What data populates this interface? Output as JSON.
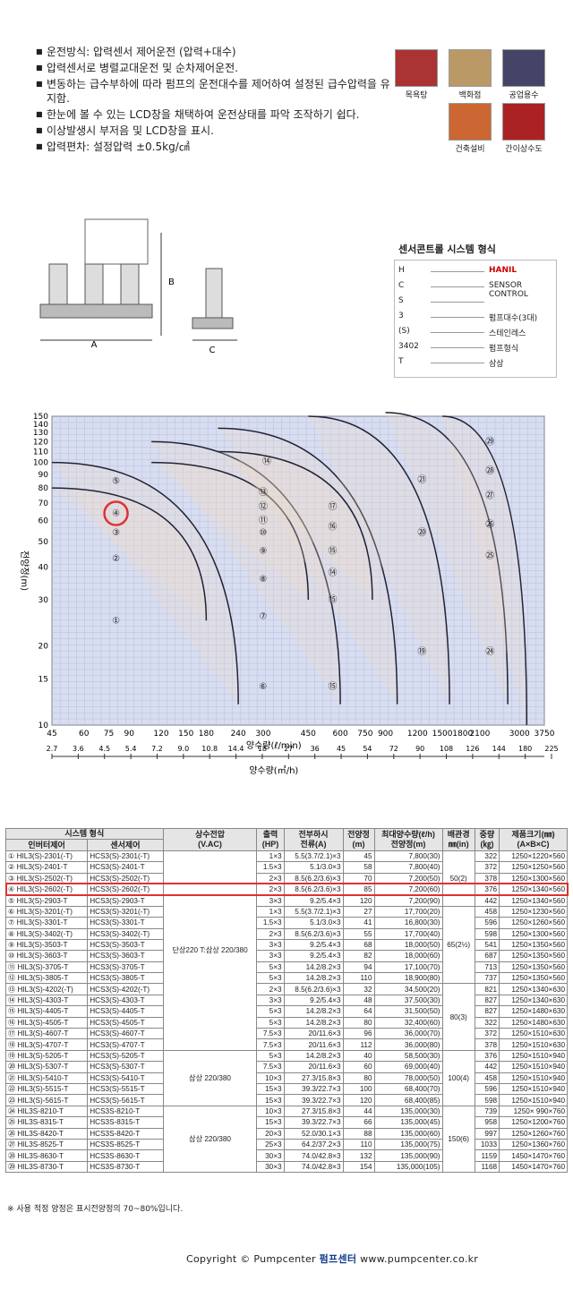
{
  "features": [
    "운전방식: 압력센서 제어운전 (압력+대수)",
    "압력센서로 병렬교대운전 및 순차제어운전.",
    "변동하는 급수부하에 따라 펌프의 운전대수를 제어하여 설정된 급수압력을 유지함.",
    "한눈에 볼 수 있는 LCD창을 채택하여 운전상태를 파악 조작하기 쉽다.",
    "이상발생시 부저음 및 LCD창을 표시.",
    "압력편차: 설정압력 ±0.5kg/㎠"
  ],
  "applications": [
    "목욕탕",
    "백화점",
    "공업용수",
    "건축설비",
    "간이상수도"
  ],
  "drawing_labels": {
    "a": "A",
    "b": "B",
    "c": "C"
  },
  "model_title": "센서콘트롤 시스템 형식",
  "model_code": [
    {
      "code": "H",
      "desc": "HANIL"
    },
    {
      "code": "C",
      "desc": "SENSOR CONTROL"
    },
    {
      "code": "S",
      "desc": ""
    },
    {
      "code": "3",
      "desc": "펌프대수(3대)"
    },
    {
      "code": "(S)",
      "desc": "스테인레스"
    },
    {
      "code": "3402",
      "desc": "펌프형식"
    },
    {
      "code": "T",
      "desc": "삼상"
    }
  ],
  "chart_data": {
    "type": "scatter",
    "xlabel": "양수량(ℓ/min)",
    "x2label": "양수량(㎥/h)",
    "ylabel": "전양정(m)",
    "xscale": "log",
    "yscale": "log",
    "xlim": [
      45,
      3750
    ],
    "ylim": [
      10,
      150
    ],
    "x_ticks": [
      45,
      60,
      75,
      90,
      120,
      150,
      180,
      240,
      300,
      450,
      600,
      750,
      900,
      1200,
      1500,
      1800,
      2100,
      3000,
      3750
    ],
    "x2_ticks": [
      "2.7",
      "3.6",
      "4.5",
      "5.4",
      "7.2",
      "9.0",
      "10.8",
      "14.4",
      "18",
      "27",
      "36",
      "45",
      "54",
      "72",
      "90",
      "108",
      "126",
      "144",
      "180",
      "225"
    ],
    "y_ticks": [
      10,
      15,
      20,
      30,
      40,
      50,
      60,
      70,
      80,
      90,
      100,
      110,
      120,
      130,
      140,
      150
    ],
    "regions": [
      {
        "id": "①",
        "x": 80,
        "y": 25
      },
      {
        "id": "②",
        "x": 80,
        "y": 43
      },
      {
        "id": "③",
        "x": 80,
        "y": 54
      },
      {
        "id": "④",
        "x": 80,
        "y": 64
      },
      {
        "id": "⑤",
        "x": 80,
        "y": 85
      },
      {
        "id": "⑥",
        "x": 300,
        "y": 14
      },
      {
        "id": "⑦",
        "x": 300,
        "y": 26
      },
      {
        "id": "⑧",
        "x": 300,
        "y": 36
      },
      {
        "id": "⑨",
        "x": 300,
        "y": 46
      },
      {
        "id": "⑩",
        "x": 300,
        "y": 54
      },
      {
        "id": "⑪",
        "x": 300,
        "y": 60
      },
      {
        "id": "⑫",
        "x": 300,
        "y": 68
      },
      {
        "id": "⑬",
        "x": 300,
        "y": 77
      },
      {
        "id": "⑭",
        "x": 310,
        "y": 101
      },
      {
        "id": "⑮",
        "x": 560,
        "y": 14
      },
      {
        "id": "⑮",
        "x": 560,
        "y": 30
      },
      {
        "id": "⑭",
        "x": 560,
        "y": 38
      },
      {
        "id": "⑮",
        "x": 560,
        "y": 46
      },
      {
        "id": "⑯",
        "x": 560,
        "y": 57
      },
      {
        "id": "⑰",
        "x": 560,
        "y": 68
      },
      {
        "id": "⑲",
        "x": 1250,
        "y": 19
      },
      {
        "id": "⑳",
        "x": 1250,
        "y": 54
      },
      {
        "id": "㉑",
        "x": 1250,
        "y": 86
      },
      {
        "id": "㉔",
        "x": 2300,
        "y": 19
      },
      {
        "id": "㉕",
        "x": 2300,
        "y": 44
      },
      {
        "id": "㉖",
        "x": 2300,
        "y": 58
      },
      {
        "id": "㉗",
        "x": 2300,
        "y": 75
      },
      {
        "id": "㉘",
        "x": 2300,
        "y": 93
      },
      {
        "id": "㉙",
        "x": 2300,
        "y": 120
      }
    ],
    "highlight": "④"
  },
  "table": {
    "headers": {
      "system": "시스템 형식",
      "inverter": "인버터제어",
      "sensor": "센서제어",
      "power": "상수전압",
      "power_unit": "(V.AC)",
      "output": "출력",
      "output_unit": "(HP)",
      "current": "전부하시",
      "current_unit": "전류(A)",
      "head": "전양정",
      "head_unit": "(m)",
      "flow": "최대양수량(ℓ/h)",
      "flow_unit": "전양정(m)",
      "pipe": "배관경",
      "pipe_unit": "㎜(in)",
      "weight": "중량",
      "weight_unit": "(㎏)",
      "size": "제품크기(㎜)",
      "size_unit": "(A×B×C)"
    },
    "rows": [
      [
        "① HIL3(S)-2301(-T)",
        "HCS3(S)-2301(-T)",
        "1×3",
        "5.5(3.7/2.1)×3",
        "45",
        "7,800(30)",
        "322",
        "1250×1220×560"
      ],
      [
        "② HIL3(S)-2401-T",
        "HCS3(S)-2401-T",
        "1.5×3",
        "5.1/3.0×3",
        "58",
        "7,800(40)",
        "372",
        "1250×1250×560"
      ],
      [
        "③ HIL3(S)-2502(-T)",
        "HCS3(S)-2502(-T)",
        "2×3",
        "8.5(6.2/3.6)×3",
        "70",
        "7,200(50)",
        "378",
        "1250×1300×560"
      ],
      [
        "④ HIL3(S)-2602(-T)",
        "HCS3(S)-2602(-T)",
        "2×3",
        "8.5(6.2/3.6)×3",
        "85",
        "7,200(60)",
        "376",
        "1250×1340×560"
      ],
      [
        "⑤ HIL3(S)-2903-T",
        "HCS3(S)-2903-T",
        "3×3",
        "9.2/5.4×3",
        "120",
        "7,200(90)",
        "442",
        "1250×1340×560"
      ],
      [
        "⑥ HIL3(S)-3201(-T)",
        "HCS3(S)-3201(-T)",
        "1×3",
        "5.5(3.7/2.1)×3",
        "27",
        "17,700(20)",
        "458",
        "1250×1230×560"
      ],
      [
        "⑦ HIL3(S)-3301-T",
        "HCS3(S)-3301-T",
        "1.5×3",
        "5.1/3.0×3",
        "41",
        "16,800(30)",
        "596",
        "1250×1260×560"
      ],
      [
        "⑧ HIL3(S)-3402(-T)",
        "HCS3(S)-3402(-T)",
        "2×3",
        "8.5(6.2/3.6)×3",
        "55",
        "17,700(40)",
        "598",
        "1250×1300×560"
      ],
      [
        "⑨ HIL3(S)-3503-T",
        "HCS3(S)-3503-T",
        "3×3",
        "9.2/5.4×3",
        "68",
        "18,000(50)",
        "541",
        "1250×1350×560"
      ],
      [
        "⑩ HIL3(S)-3603-T",
        "HCS3(S)-3603-T",
        "3×3",
        "9.2/5.4×3",
        "82",
        "18,000(60)",
        "687",
        "1250×1350×560"
      ],
      [
        "⑪ HIL3(S)-3705-T",
        "HCS3(S)-3705-T",
        "5×3",
        "14.2/8.2×3",
        "94",
        "17,100(70)",
        "713",
        "1250×1350×560"
      ],
      [
        "⑫ HIL3(S)-3805-T",
        "HCS3(S)-3805-T",
        "5×3",
        "14.2/8.2×3",
        "110",
        "18,900(80)",
        "737",
        "1250×1350×560"
      ],
      [
        "⑬ HIL3(S)-4202(-T)",
        "HCS3(S)-4202(-T)",
        "2×3",
        "8.5(6.2/3.6)×3",
        "32",
        "34,500(20)",
        "821",
        "1250×1340×630"
      ],
      [
        "⑭ HIL3(S)-4303-T",
        "HCS3(S)-4303-T",
        "3×3",
        "9.2/5.4×3",
        "48",
        "37,500(30)",
        "827",
        "1250×1340×630"
      ],
      [
        "⑮ HIL3(S)-4405-T",
        "HCS3(S)-4405-T",
        "5×3",
        "14.2/8.2×3",
        "64",
        "31,500(50)",
        "827",
        "1250×1480×630"
      ],
      [
        "⑯ HIL3(S)-4505-T",
        "HCS3(S)-4505-T",
        "5×3",
        "14.2/8.2×3",
        "80",
        "32,400(60)",
        "322",
        "1250×1480×630"
      ],
      [
        "⑰ HIL3(S)-4607-T",
        "HCS3(S)-4607-T",
        "7.5×3",
        "20/11.6×3",
        "96",
        "36,000(70)",
        "372",
        "1250×1510×630"
      ],
      [
        "⑱ HIL3(S)-4707-T",
        "HCS3(S)-4707-T",
        "7.5×3",
        "20/11.6×3",
        "112",
        "36,000(80)",
        "378",
        "1250×1510×630"
      ],
      [
        "⑲ HIL3(S)-5205-T",
        "HCS3(S)-5205-T",
        "5×3",
        "14.2/8.2×3",
        "40",
        "58,500(30)",
        "376",
        "1250×1510×940"
      ],
      [
        "⑳ HIL3(S)-5307-T",
        "HCS3(S)-5307-T",
        "7.5×3",
        "20/11.6×3",
        "60",
        "69,000(40)",
        "442",
        "1250×1510×940"
      ],
      [
        "㉑ HIL3(S)-5410-T",
        "HCS3(S)-5410-T",
        "10×3",
        "27.3/15.8×3",
        "80",
        "78,000(50)",
        "458",
        "1250×1510×940"
      ],
      [
        "㉒ HIL3(S)-5515-T",
        "HCS3(S)-5515-T",
        "15×3",
        "39.3/22.7×3",
        "100",
        "68,400(70)",
        "596",
        "1250×1510×940"
      ],
      [
        "㉓ HIL3(S)-5615-T",
        "HCS3(S)-5615-T",
        "15×3",
        "39.3/22.7×3",
        "120",
        "68,400(85)",
        "598",
        "1250×1510×940"
      ],
      [
        "㉔ HIL3S-8210-T",
        "HCS3S-8210-T",
        "10×3",
        "27.3/15.8×3",
        "44",
        "135,000(30)",
        "739",
        "1250× 990×760"
      ],
      [
        "㉕ HIL3S-8315-T",
        "HCS3S-8315-T",
        "15×3",
        "39.3/22.7×3",
        "66",
        "135,000(45)",
        "958",
        "1250×1200×760"
      ],
      [
        "㉖ HIL3S-8420-T",
        "HCS3S-8420-T",
        "20×3",
        "52.0/30.1×3",
        "88",
        "135,000(60)",
        "997",
        "1250×1260×760"
      ],
      [
        "㉗ HIL3S-8525-T",
        "HCS3S-8525-T",
        "25×3",
        "64.2/37.2×3",
        "110",
        "135,000(75)",
        "1033",
        "1250×1360×760"
      ],
      [
        "㉘ HIL3S-8630-T",
        "HCS3S-8630-T",
        "30×3",
        "74.0/42.8×3",
        "132",
        "135,000(90)",
        "1159",
        "1450×1470×760"
      ],
      [
        "㉙ HIL3S-8730-T",
        "HCS3S-8730-T",
        "30×3",
        "74.0/42.8×3",
        "154",
        "135,000(105)",
        "1168",
        "1450×1470×760"
      ]
    ],
    "power_groups": [
      {
        "text": "단상220 T:삼상 220/380"
      },
      {
        "text": "삼상 220/380"
      },
      {
        "text": "삼상 220/380"
      }
    ],
    "pipe_groups": [
      "50(2)",
      "65(2½)",
      "80(3)",
      "100(4)",
      "150(6)"
    ],
    "highlight_row": 3
  },
  "note": "※ 사용 적정 양정은 표시전양정의 70~80%입니다.",
  "footer": {
    "copyright": "Copyright © Pumpcenter",
    "logo": "펌프센터",
    "url": "www.pumpcenter.co.kr"
  }
}
